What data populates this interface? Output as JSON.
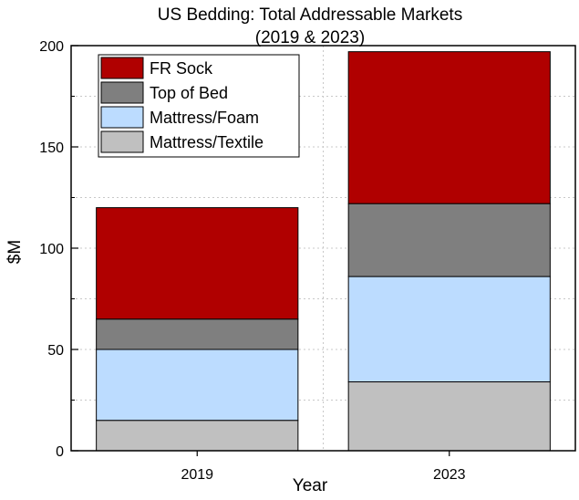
{
  "chart_data": {
    "type": "bar",
    "stacked": true,
    "title": "US Bedding: Total Addressable Markets",
    "subtitle": "(2019 & 2023)",
    "xlabel": "Year",
    "ylabel": "$M",
    "categories": [
      "2019",
      "2023"
    ],
    "ylim": [
      0,
      200
    ],
    "yticks": [
      0,
      50,
      100,
      150,
      200
    ],
    "grid": true,
    "legend_position": "top-left",
    "series": [
      {
        "name": "Mattress/Textile",
        "values": [
          15,
          34
        ],
        "color": "#c0c0c0"
      },
      {
        "name": "Mattress/Foam",
        "values": [
          35,
          52
        ],
        "color": "#bcdcff"
      },
      {
        "name": "Top of Bed",
        "values": [
          15,
          36
        ],
        "color": "#7f7f7f"
      },
      {
        "name": "FR Sock",
        "values": [
          55,
          75
        ],
        "color": "#b00000"
      }
    ],
    "legend_order": [
      "FR Sock",
      "Top of Bed",
      "Mattress/Foam",
      "Mattress/Textile"
    ]
  }
}
